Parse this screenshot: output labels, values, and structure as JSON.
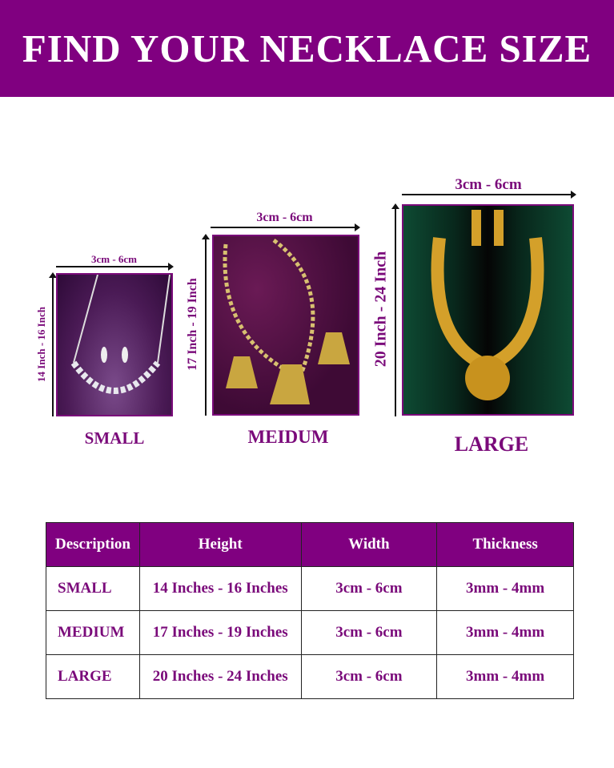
{
  "banner": {
    "title": "FIND YOUR NECKLACE SIZE"
  },
  "colors": {
    "brand": "#800080",
    "text": "#7a0a7a"
  },
  "products": [
    {
      "name": "SMALL",
      "width": "3cm - 6cm",
      "height": "14 Inch - 16 Inch",
      "image": "silver diamond necklace and earrings on purple fabric"
    },
    {
      "name": "MEIDUM",
      "width": "3cm - 6cm",
      "height": "17 Inch - 19 Inch",
      "image": "gold necklace with temple pendant and earrings on purple fabric"
    },
    {
      "name": "LARGE",
      "width": "3cm - 6cm",
      "height": "20 Inch - 24 Inch",
      "image": "gold temple long necklace with earrings on black bust"
    }
  ],
  "table": {
    "headers": [
      "Description",
      "Height",
      "Width",
      "Thickness"
    ],
    "rows": [
      [
        "SMALL",
        "14 Inches - 16 Inches",
        "3cm - 6cm",
        "3mm - 4mm"
      ],
      [
        "MEDIUM",
        "17 Inches - 19 Inches",
        "3cm - 6cm",
        "3mm - 4mm"
      ],
      [
        "LARGE",
        "20 Inches - 24 Inches",
        "3cm - 6cm",
        "3mm - 4mm"
      ]
    ]
  }
}
